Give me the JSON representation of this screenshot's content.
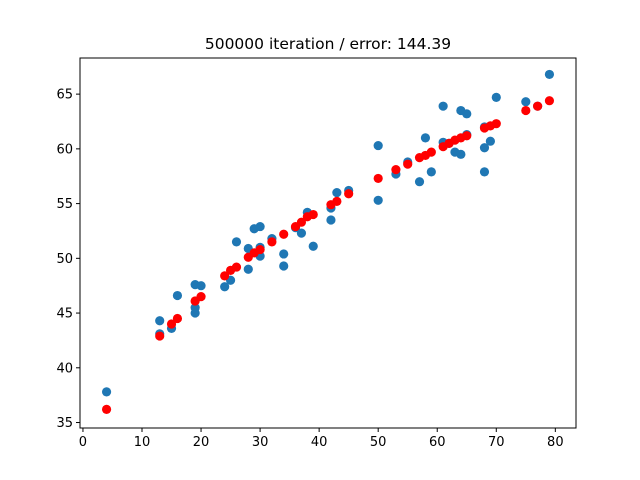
{
  "chart_data": {
    "type": "scatter",
    "title": "500000 iteration / error: 144.39",
    "xlabel": "",
    "ylabel": "",
    "xlim": [
      -0.5,
      83.5
    ],
    "ylim": [
      34.5,
      68.3
    ],
    "x_ticks": [
      0,
      10,
      20,
      30,
      40,
      50,
      60,
      70,
      80
    ],
    "y_ticks": [
      35,
      40,
      45,
      50,
      55,
      60,
      65
    ],
    "grid": false,
    "legend": "none",
    "series": [
      {
        "color": "#1f77b4",
        "marker": "circle",
        "points": [
          [
            4,
            37.8
          ],
          [
            13,
            44.3
          ],
          [
            13,
            43.1
          ],
          [
            15,
            43.6
          ],
          [
            16,
            46.6
          ],
          [
            19,
            47.6
          ],
          [
            19,
            45.5
          ],
          [
            19,
            45.0
          ],
          [
            20,
            47.5
          ],
          [
            24,
            47.4
          ],
          [
            25,
            48.0
          ],
          [
            26,
            51.5
          ],
          [
            28,
            50.9
          ],
          [
            28,
            49.0
          ],
          [
            29,
            52.7
          ],
          [
            30,
            52.9
          ],
          [
            30,
            51.0
          ],
          [
            30,
            50.2
          ],
          [
            32,
            51.8
          ],
          [
            34,
            50.4
          ],
          [
            34,
            49.3
          ],
          [
            36,
            52.8
          ],
          [
            37,
            52.3
          ],
          [
            38,
            54.2
          ],
          [
            39,
            51.1
          ],
          [
            42,
            54.6
          ],
          [
            42,
            53.5
          ],
          [
            43,
            56.0
          ],
          [
            45,
            56.2
          ],
          [
            50,
            60.3
          ],
          [
            50,
            55.3
          ],
          [
            53,
            57.7
          ],
          [
            55,
            58.8
          ],
          [
            57,
            57.0
          ],
          [
            58,
            61.0
          ],
          [
            59,
            57.9
          ],
          [
            61,
            63.9
          ],
          [
            61,
            60.6
          ],
          [
            62,
            60.5
          ],
          [
            63,
            59.7
          ],
          [
            64,
            63.5
          ],
          [
            64,
            59.5
          ],
          [
            65,
            63.2
          ],
          [
            65,
            61.3
          ],
          [
            68,
            62.0
          ],
          [
            68,
            60.1
          ],
          [
            68,
            57.9
          ],
          [
            69,
            60.7
          ],
          [
            70,
            64.7
          ],
          [
            75,
            64.3
          ],
          [
            77,
            63.9
          ],
          [
            79,
            66.8
          ]
        ]
      },
      {
        "color": "#ff0000",
        "marker": "circle",
        "points": [
          [
            4,
            36.2
          ],
          [
            13,
            42.9
          ],
          [
            15,
            44.0
          ],
          [
            16,
            44.5
          ],
          [
            19,
            46.1
          ],
          [
            20,
            46.5
          ],
          [
            24,
            48.4
          ],
          [
            25,
            48.9
          ],
          [
            26,
            49.2
          ],
          [
            28,
            50.1
          ],
          [
            29,
            50.5
          ],
          [
            30,
            50.8
          ],
          [
            32,
            51.5
          ],
          [
            34,
            52.2
          ],
          [
            36,
            52.9
          ],
          [
            37,
            53.3
          ],
          [
            38,
            53.8
          ],
          [
            39,
            54.0
          ],
          [
            42,
            54.9
          ],
          [
            43,
            55.2
          ],
          [
            45,
            55.9
          ],
          [
            50,
            57.3
          ],
          [
            53,
            58.1
          ],
          [
            55,
            58.6
          ],
          [
            57,
            59.2
          ],
          [
            58,
            59.4
          ],
          [
            59,
            59.7
          ],
          [
            61,
            60.2
          ],
          [
            62,
            60.5
          ],
          [
            63,
            60.8
          ],
          [
            64,
            61.0
          ],
          [
            65,
            61.2
          ],
          [
            68,
            61.9
          ],
          [
            69,
            62.1
          ],
          [
            70,
            62.3
          ],
          [
            75,
            63.5
          ],
          [
            77,
            63.9
          ],
          [
            79,
            64.4
          ]
        ]
      }
    ]
  }
}
